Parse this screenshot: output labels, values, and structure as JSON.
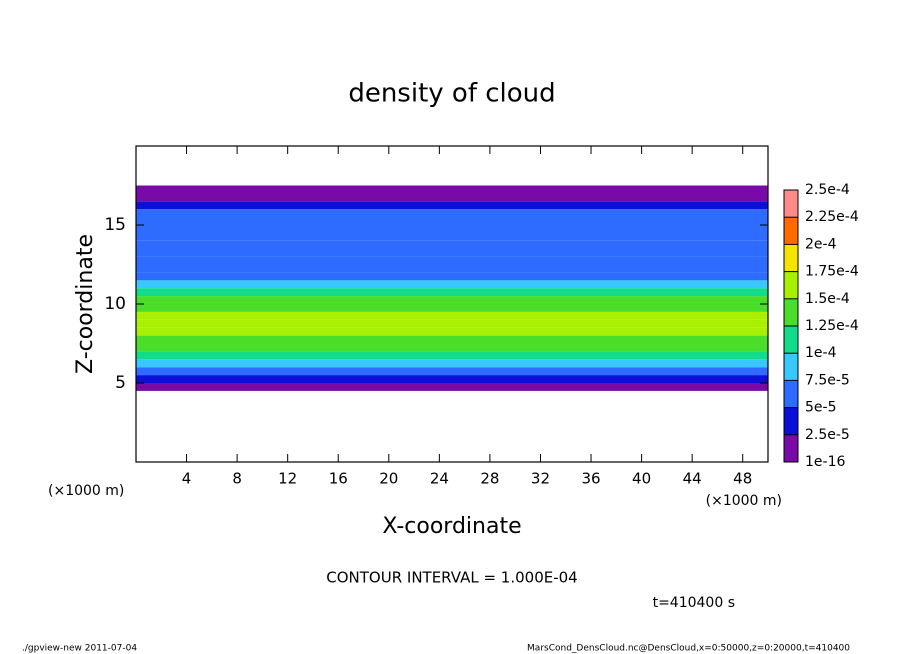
{
  "chart_data": {
    "type": "heatmap",
    "title": "density of cloud",
    "x_label": "X-coordinate",
    "y_label": "Z-coordinate",
    "x_unit_left": "(×1000 m)",
    "x_unit_right": "(×1000 m)",
    "contour_note": "CONTOUR INTERVAL = 1.000E-04",
    "time_note": "t=410400 s",
    "footer_left": "./gpview-new  2011-07-04",
    "footer_right": "MarsCond_DensCloud.nc@DensCloud,x=0:50000,z=0:20000,t=410400",
    "xlim": [
      0,
      50
    ],
    "xticks": [
      4,
      8,
      12,
      16,
      20,
      24,
      28,
      32,
      36,
      40,
      44,
      48
    ],
    "ylim": [
      0,
      20
    ],
    "yticks": [
      5,
      10,
      15
    ],
    "z_bins": [
      4.5,
      5,
      5.5,
      6,
      6.5,
      7,
      7.5,
      8,
      8.5,
      9,
      9.5,
      10,
      10.5,
      11,
      11.5,
      12,
      13,
      14,
      15,
      16,
      16.5,
      17.5
    ],
    "values": [
      1e-06,
      3e-05,
      6e-05,
      8.5e-05,
      0.00011,
      0.00013,
      0.00014,
      0.00015,
      0.000155,
      0.00015,
      0.00014,
      0.000125,
      0.000105,
      8.5e-05,
      7e-05,
      6e-05,
      5.5e-05,
      5.5e-05,
      5.5e-05,
      3e-05,
      1e-06
    ],
    "colorbar_ticks": [
      {
        "value": 1e-16,
        "label": "1e-16"
      },
      {
        "value": 2.5e-05,
        "label": "2.5e-5"
      },
      {
        "value": 5e-05,
        "label": "5e-5"
      },
      {
        "value": 7.5e-05,
        "label": "7.5e-5"
      },
      {
        "value": 0.0001,
        "label": "1e-4"
      },
      {
        "value": 0.000125,
        "label": "1.25e-4"
      },
      {
        "value": 0.00015,
        "label": "1.5e-4"
      },
      {
        "value": 0.000175,
        "label": "1.75e-4"
      },
      {
        "value": 0.0002,
        "label": "2e-4"
      },
      {
        "value": 0.000225,
        "label": "2.25e-4"
      },
      {
        "value": 0.00025,
        "label": "2.5e-4"
      }
    ],
    "colorbar_colors": [
      "#7a0aa8",
      "#0a10d8",
      "#2e6cff",
      "#38c8ff",
      "#10dc8a",
      "#4ade2a",
      "#a8f000",
      "#f4e400",
      "#ff6a00",
      "#ff8a8a"
    ]
  }
}
